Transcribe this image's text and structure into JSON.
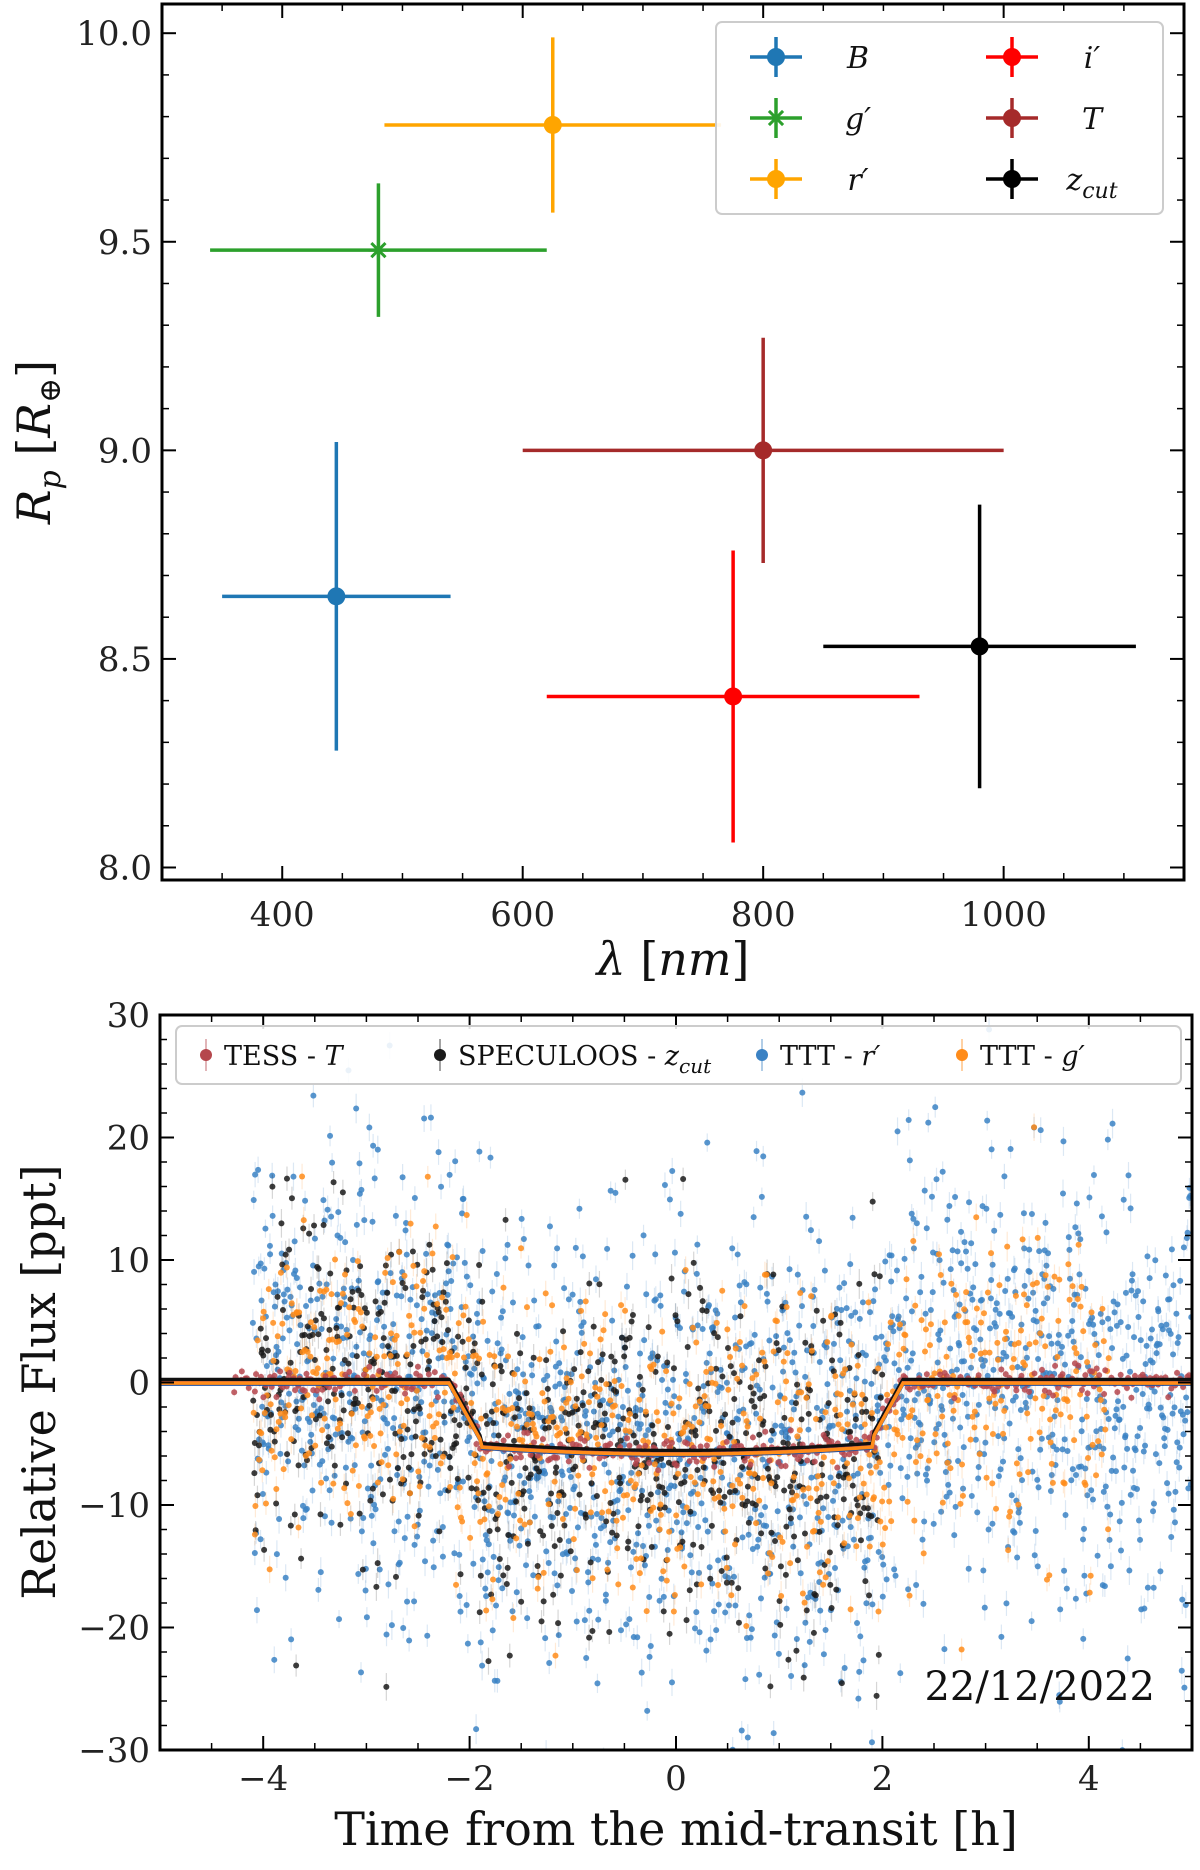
{
  "chart_data": [
    {
      "type": "scatter",
      "title": "",
      "xlabel": "λ [nm]",
      "ylabel": "R_p [R_⊕]",
      "xlim": [
        300,
        1150
      ],
      "ylim": [
        7.97,
        10.07
      ],
      "xticks": [
        400,
        600,
        800,
        1000
      ],
      "yticks": [
        8.0,
        8.5,
        9.0,
        9.5,
        10.0
      ],
      "xtick_labels": [
        "400",
        "600",
        "800",
        "1000"
      ],
      "ytick_labels": [
        "8.0",
        "8.5",
        "9.0",
        "9.5",
        "10.0"
      ],
      "series": [
        {
          "name": "B",
          "color": "#1f77b4",
          "marker": "circle",
          "x": 445,
          "xerr": 95,
          "y": 8.65,
          "yerr": 0.37
        },
        {
          "name": "g'",
          "color": "#2ca02c",
          "marker": "star",
          "x": 480,
          "xerr": 140,
          "y": 9.48,
          "yerr": 0.16
        },
        {
          "name": "r'",
          "color": "#ffa500",
          "marker": "circle",
          "x": 625,
          "xerr": 140,
          "y": 9.78,
          "yerr": 0.21
        },
        {
          "name": "i'",
          "color": "#ff0000",
          "marker": "circle",
          "x": 775,
          "xerr": 155,
          "y": 8.41,
          "yerr": 0.35
        },
        {
          "name": "T",
          "color": "#a52a2a",
          "marker": "circle",
          "x": 800,
          "xerr": 200,
          "y": 9.0,
          "yerr": 0.27
        },
        {
          "name": "z_cut",
          "color": "#000000",
          "marker": "circle",
          "x": 980,
          "xerr": 130,
          "y": 8.53,
          "yerr": 0.34
        }
      ],
      "legend": [
        {
          "label": "B",
          "color": "#1f77b4",
          "marker": "circle"
        },
        {
          "label": "g′",
          "color": "#2ca02c",
          "marker": "star"
        },
        {
          "label": "r′",
          "color": "#ffa500",
          "marker": "circle"
        },
        {
          "label": "i′",
          "color": "#ff0000",
          "marker": "circle"
        },
        {
          "label": "T",
          "color": "#a52a2a",
          "marker": "circle"
        },
        {
          "label": "z",
          "sub": "cut",
          "color": "#000000",
          "marker": "circle"
        }
      ],
      "legend_position": "top-right"
    },
    {
      "type": "scatter",
      "title": "",
      "xlabel": "Time from the mid-transit [h]",
      "ylabel": "Relative Flux [ppt]",
      "xlim": [
        -5,
        5
      ],
      "ylim": [
        -30,
        30
      ],
      "xticks": [
        -4,
        -2,
        0,
        2,
        4
      ],
      "yticks": [
        -30,
        -20,
        -10,
        0,
        10,
        20,
        30
      ],
      "xtick_labels": [
        "−4",
        "−2",
        "0",
        "2",
        "4"
      ],
      "ytick_labels": [
        "−30",
        "−20",
        "−10",
        "0",
        "10",
        "20",
        "30"
      ],
      "annotation": "22/12/2022",
      "transit_model": {
        "t1": -2.2,
        "t2": -1.9,
        "t3": 1.9,
        "t4": 2.2,
        "depth": -5.8
      },
      "series": [
        {
          "name": "TESS - T",
          "color": "#b5474d",
          "t_start": -4.3,
          "t_end": 5.0,
          "count": 420,
          "scatter": 0.6
        },
        {
          "name": "SPECULOOS - z_cut",
          "color": "#1a1a1a",
          "t_start": -4.1,
          "t_end": 2.0,
          "count": 700,
          "scatter": 7.5
        },
        {
          "name": "TTT - r'",
          "color": "#3b82c4",
          "t_start": -4.1,
          "t_end": 5.0,
          "count": 1700,
          "scatter": 9.5
        },
        {
          "name": "TTT - g'",
          "color": "#ff8c1a",
          "t_start": -4.1,
          "t_end": 4.2,
          "count": 800,
          "scatter": 6.5
        }
      ],
      "legend": [
        {
          "label": "TESS - ",
          "italic": "T",
          "color": "#b5474d"
        },
        {
          "label": "SPECULOOS - ",
          "italic": "z",
          "sub": "cut",
          "color": "#1a1a1a"
        },
        {
          "label": "TTT - ",
          "italic": "r′",
          "color": "#3b82c4"
        },
        {
          "label": "TTT - ",
          "italic": "g′",
          "color": "#ff8c1a"
        }
      ],
      "legend_position": "top"
    }
  ]
}
